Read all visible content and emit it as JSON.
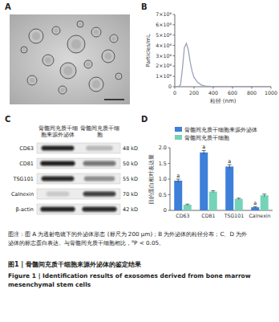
{
  "panel_labels": [
    "A",
    "B",
    "C",
    "D"
  ],
  "chart_data": [
    {
      "type": "line",
      "x_label": "粒径 (nm)",
      "y_label": "Particles/mL",
      "x": [
        0,
        20,
        40,
        60,
        80,
        100,
        120,
        140,
        160,
        180,
        200,
        240,
        280,
        320,
        400,
        500,
        600,
        800,
        1000
      ],
      "values": [
        0,
        0,
        0,
        200000,
        1800000,
        3800000,
        4200000,
        3600000,
        2400000,
        1500000,
        900000,
        400000,
        150000,
        60000,
        10000,
        0,
        0,
        0,
        0
      ],
      "color": "#9aa3b8",
      "xlim": [
        0,
        1000
      ],
      "xticks": [
        0,
        200,
        400,
        600,
        800,
        1000
      ],
      "ylim": [
        0,
        7000000
      ],
      "yticks": [
        0,
        {
          "value": 1000000,
          "label": "1×10⁶"
        },
        {
          "value": 2000000,
          "label": "2×10⁶"
        },
        {
          "value": 3000000,
          "label": "3×10⁶"
        },
        {
          "value": 4000000,
          "label": "4×10⁶"
        },
        {
          "value": 5000000,
          "label": "5×10⁶"
        },
        {
          "value": 6000000,
          "label": "6×10⁶"
        },
        {
          "value": 7000000,
          "label": "7×10⁶"
        }
      ],
      "grid": false
    },
    {
      "type": "bar",
      "y_label": "目的蛋白相对表达量",
      "categories": [
        "CD63",
        "CD81",
        "TSG101",
        "Calnexin"
      ],
      "series": [
        {
          "name": "骨髓间充质干细胞来源外泌体",
          "color": "#3d7fd9",
          "values": [
            0.95,
            1.85,
            1.4,
            0.1
          ],
          "errors": [
            0.05,
            0.06,
            0.06,
            0.02
          ],
          "significance": [
            "a",
            "a",
            "a",
            "a"
          ]
        },
        {
          "name": "骨髓间充质干细胞",
          "color": "#74d3b8",
          "values": [
            0.18,
            0.6,
            0.37,
            0.48
          ],
          "errors": [
            0.02,
            0.03,
            0.02,
            0.04
          ]
        }
      ],
      "ylim": [
        0,
        2
      ],
      "yticks": [
        0,
        0.5,
        {
          "value": 1,
          "label": "1.0"
        },
        1.5,
        {
          "value": 2,
          "label": "2.0"
        }
      ],
      "legend": "top",
      "grid": false
    }
  ],
  "blot": {
    "columns": [
      "骨髓间充质干细胞来源外泌体",
      "骨髓间充质干细胞"
    ],
    "rows": [
      {
        "protein": "CD63",
        "size": "48 kD"
      },
      {
        "protein": "CD81",
        "size": "50 kD"
      },
      {
        "protein": "TSG101",
        "size": "55 kD"
      },
      {
        "protein": "Calnexin",
        "size": "70 kD"
      },
      {
        "protein": "β-actin",
        "size": "42 kD"
      }
    ]
  },
  "caption": {
    "note": "图注：图 A 为透射电镜下的外泌体形态 (标尺为 200 μm)；B 为外泌体的粒径分布；C、D 为外泌体的标志蛋白表达。与骨髓间充质干细胞相比，",
    "sig_mark": "a",
    "sig_text": "P < 0.05。"
  },
  "title": {
    "cn": "图1 | 骨髓间充质干细胞来源外泌体的鉴定结果",
    "en": "Figure 1 | Identification results of exosomes derived from bone marrow mesenchymal stem cells"
  }
}
